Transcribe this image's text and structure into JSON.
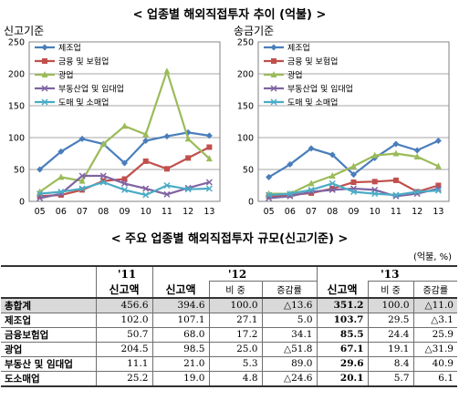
{
  "title": "< 업종별 해외직접투자 추이 (억불) >",
  "chart_data": [
    {
      "type": "line",
      "subtitle": "신고기준",
      "categories": [
        "05",
        "06",
        "07",
        "08",
        "09",
        "10",
        "11",
        "12",
        "13"
      ],
      "ylim": [
        0,
        250
      ],
      "yticks": [
        "0",
        "50",
        "100",
        "150",
        "200",
        "250"
      ],
      "grid": true,
      "legend": "top-left",
      "series": [
        {
          "name": "제조업",
          "color": "#4a7ebb",
          "marker": "diamond",
          "values": [
            50,
            78,
            98,
            90,
            60,
            95,
            102,
            108,
            103
          ]
        },
        {
          "name": "금융 및 보험업",
          "color": "#c0504d",
          "marker": "square",
          "values": [
            8,
            10,
            18,
            32,
            35,
            63,
            51,
            68,
            85
          ]
        },
        {
          "name": "광업",
          "color": "#9bbb59",
          "marker": "triangle",
          "values": [
            15,
            38,
            32,
            90,
            118,
            105,
            204,
            98,
            67
          ]
        },
        {
          "name": "부동산업 및 임대업",
          "color": "#8064a2",
          "marker": "x",
          "values": [
            5,
            12,
            40,
            40,
            28,
            20,
            11,
            21,
            30
          ]
        },
        {
          "name": "도매 및 소매업",
          "color": "#4bacc6",
          "marker": "x",
          "values": [
            12,
            15,
            20,
            30,
            18,
            10,
            25,
            19,
            20
          ]
        }
      ]
    },
    {
      "type": "line",
      "subtitle": "송금기준",
      "categories": [
        "05",
        "06",
        "07",
        "08",
        "09",
        "10",
        "11",
        "12",
        "13"
      ],
      "ylim": [
        0,
        250
      ],
      "yticks": [
        "0",
        "50",
        "100",
        "150",
        "200",
        "250"
      ],
      "grid": true,
      "legend": "top-left",
      "series": [
        {
          "name": "제조업",
          "color": "#4a7ebb",
          "marker": "diamond",
          "values": [
            38,
            58,
            83,
            73,
            42,
            68,
            90,
            80,
            95
          ]
        },
        {
          "name": "금융 및 보험업",
          "color": "#c0504d",
          "marker": "square",
          "values": [
            8,
            10,
            13,
            20,
            30,
            31,
            33,
            15,
            25
          ]
        },
        {
          "name": "광업",
          "color": "#9bbb59",
          "marker": "triangle",
          "values": [
            12,
            12,
            28,
            40,
            55,
            72,
            75,
            70,
            55
          ]
        },
        {
          "name": "부동산업 및 임대업",
          "color": "#8064a2",
          "marker": "x",
          "values": [
            5,
            8,
            15,
            18,
            20,
            18,
            8,
            12,
            20
          ]
        },
        {
          "name": "도매 및 소매업",
          "color": "#4bacc6",
          "marker": "x",
          "values": [
            10,
            12,
            18,
            28,
            15,
            12,
            10,
            15,
            17
          ]
        }
      ]
    }
  ],
  "table_title": "< 주요 업종별 해외직접투자 규모(신고기준) >",
  "unit": "(억불, %)",
  "table": {
    "years": [
      "'11",
      "'12",
      "'13"
    ],
    "subheaders": [
      "신고액",
      "신고액",
      "비 중",
      "증감률",
      "신고액",
      "비 중",
      "증감률"
    ],
    "rows": [
      {
        "label": "총합계",
        "values": [
          "456.6",
          "394.6",
          "100.0",
          "△13.6",
          "351.2",
          "100.0",
          "△11.0"
        ]
      },
      {
        "label": "제조업",
        "values": [
          "102.0",
          "107.1",
          "27.1",
          "5.0",
          "103.7",
          "29.5",
          "△3.1"
        ]
      },
      {
        "label": "금융보험업",
        "values": [
          "50.7",
          "68.0",
          "17.2",
          "34.1",
          "85.5",
          "24.4",
          "25.9"
        ]
      },
      {
        "label": "광업",
        "values": [
          "204.5",
          "98.5",
          "25.0",
          "△51.8",
          "67.1",
          "19.1",
          "△31.9"
        ]
      },
      {
        "label": "부동산 및 임대업",
        "values": [
          "11.1",
          "21.0",
          "5.3",
          "89.0",
          "29.6",
          "8.4",
          "40.9"
        ]
      },
      {
        "label": "도소매업",
        "values": [
          "25.2",
          "19.0",
          "4.8",
          "△24.6",
          "20.1",
          "5.7",
          "6.1"
        ]
      }
    ]
  }
}
